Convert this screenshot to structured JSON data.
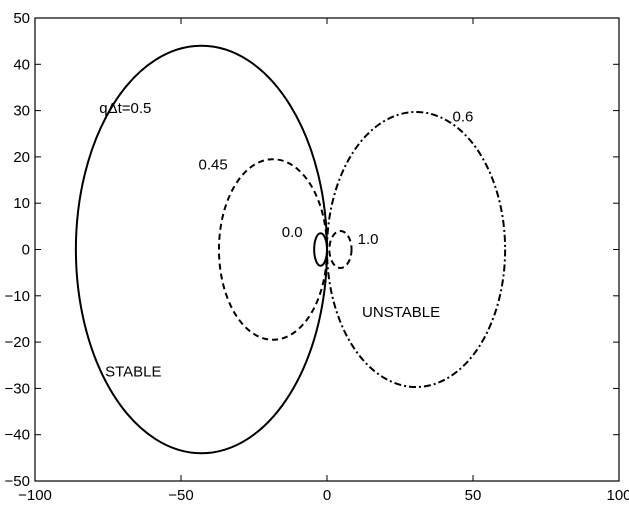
{
  "chart_data": {
    "type": "line",
    "title": "",
    "xlabel": "",
    "ylabel": "",
    "xlim": [
      -100,
      100
    ],
    "ylim": [
      -50,
      50
    ],
    "xticks": [
      -100,
      -50,
      0,
      50,
      100
    ],
    "yticks": [
      -50,
      -40,
      -30,
      -20,
      -10,
      0,
      10,
      20,
      30,
      40,
      50
    ],
    "xtick_labels": [
      "−100",
      "−50",
      "0",
      "50",
      "100"
    ],
    "ytick_labels": [
      "−50",
      "−40",
      "−30",
      "−20",
      "−10",
      "0",
      "10",
      "20",
      "30",
      "40",
      "50"
    ],
    "grid": false,
    "series": [
      {
        "curve": "ellipse",
        "center": [
          -43,
          0
        ],
        "radii": [
          43,
          44
        ],
        "line_style": "solid",
        "color": "#000000"
      },
      {
        "curve": "ellipse",
        "center": [
          -18.5,
          0
        ],
        "radii": [
          18.5,
          19.5
        ],
        "line_style": "dashed",
        "color": "#000000"
      },
      {
        "curve": "ellipse",
        "center": [
          30.5,
          0
        ],
        "radii": [
          30.5,
          29.7
        ],
        "line_style": "dash-dot",
        "color": "#000000"
      },
      {
        "curve": "ellipse",
        "center": [
          -2.2,
          0
        ],
        "radii": [
          2.2,
          3.5
        ],
        "line_style": "solid",
        "color": "#000000"
      },
      {
        "curve": "ellipse",
        "center": [
          4.6,
          0
        ],
        "radii": [
          3.8,
          4.0
        ],
        "line_style": "dashed",
        "color": "#000000"
      }
    ],
    "annotations": [
      {
        "text": "qΔt=0.5",
        "x": -78,
        "y": 29.5
      },
      {
        "text": "0.45",
        "x": -44,
        "y": 17.3
      },
      {
        "text": "0.6",
        "x": 43,
        "y": 27.6
      },
      {
        "text": "0.0",
        "x": -15.5,
        "y": 2.7
      },
      {
        "text": "1.0",
        "x": 10.5,
        "y": 1.2
      },
      {
        "text": "UNSTABLE",
        "x": 12,
        "y": -14.6
      },
      {
        "text": "STABLE",
        "x": -76,
        "y": -27.4
      }
    ]
  }
}
